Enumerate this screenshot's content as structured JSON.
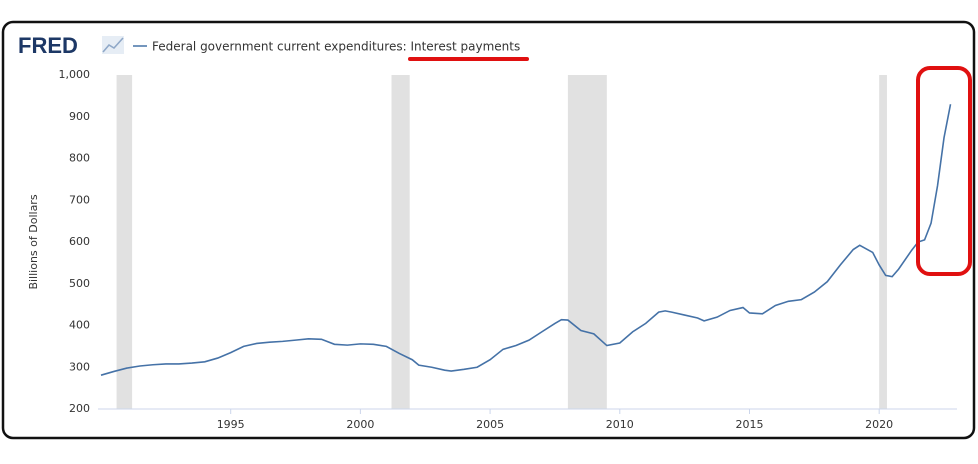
{
  "chart_data": {
    "type": "line",
    "logo": "FRED",
    "y_label": "Billions of Dollars",
    "series": [
      {
        "name": "Federal government current expenditures: Interest payments",
        "color": "#4572a7",
        "x": [
          1990,
          1990.5,
          1991,
          1991.5,
          1992,
          1992.5,
          1993,
          1993.5,
          1994,
          1994.5,
          1995,
          1995.5,
          1996,
          1996.5,
          1997,
          1997.5,
          1998,
          1998.5,
          1999,
          1999.5,
          2000,
          2000.5,
          2001,
          2001.5,
          2002,
          2002.25,
          2002.75,
          2003.25,
          2003.5,
          2004,
          2004.5,
          2005,
          2005.5,
          2006,
          2006.5,
          2007,
          2007.5,
          2007.75,
          2008,
          2008.5,
          2009,
          2009.5,
          2010,
          2010.5,
          2011,
          2011.5,
          2011.75,
          2012,
          2012.5,
          2013,
          2013.25,
          2013.75,
          2014.25,
          2014.75,
          2015,
          2015.5,
          2016,
          2016.5,
          2017,
          2017.5,
          2018,
          2018.5,
          2019,
          2019.25,
          2019.75,
          2020,
          2020.25,
          2020.5,
          2020.75,
          2021.25,
          2021.5,
          2021.75,
          2022,
          2022.25,
          2022.5,
          2022.75
        ],
        "values": [
          281,
          290,
          298,
          303,
          306,
          308,
          308,
          310,
          313,
          322,
          335,
          350,
          357,
          360,
          362,
          365,
          368,
          367,
          355,
          353,
          356,
          355,
          350,
          333,
          318,
          305,
          300,
          293,
          291,
          295,
          300,
          318,
          343,
          352,
          365,
          385,
          405,
          414,
          413,
          388,
          380,
          352,
          358,
          385,
          405,
          432,
          435,
          432,
          425,
          418,
          411,
          420,
          436,
          443,
          430,
          428,
          448,
          458,
          462,
          480,
          505,
          545,
          582,
          592,
          575,
          545,
          520,
          517,
          535,
          580,
          600,
          605,
          645,
          735,
          850,
          930
        ]
      }
    ],
    "recessions": [
      [
        1990.6,
        1991.2
      ],
      [
        2001.2,
        2001.9
      ],
      [
        2008.0,
        2009.5
      ],
      [
        2020.0,
        2020.3
      ]
    ],
    "xlim": [
      1990,
      2023
    ],
    "xticks": [
      1995,
      2000,
      2005,
      2010,
      2015,
      2020
    ],
    "ylim": [
      200,
      1000
    ],
    "yticks": [
      200,
      300,
      400,
      500,
      600,
      700,
      800,
      900,
      {
        "value": 1000,
        "label": "1,000"
      }
    ]
  }
}
